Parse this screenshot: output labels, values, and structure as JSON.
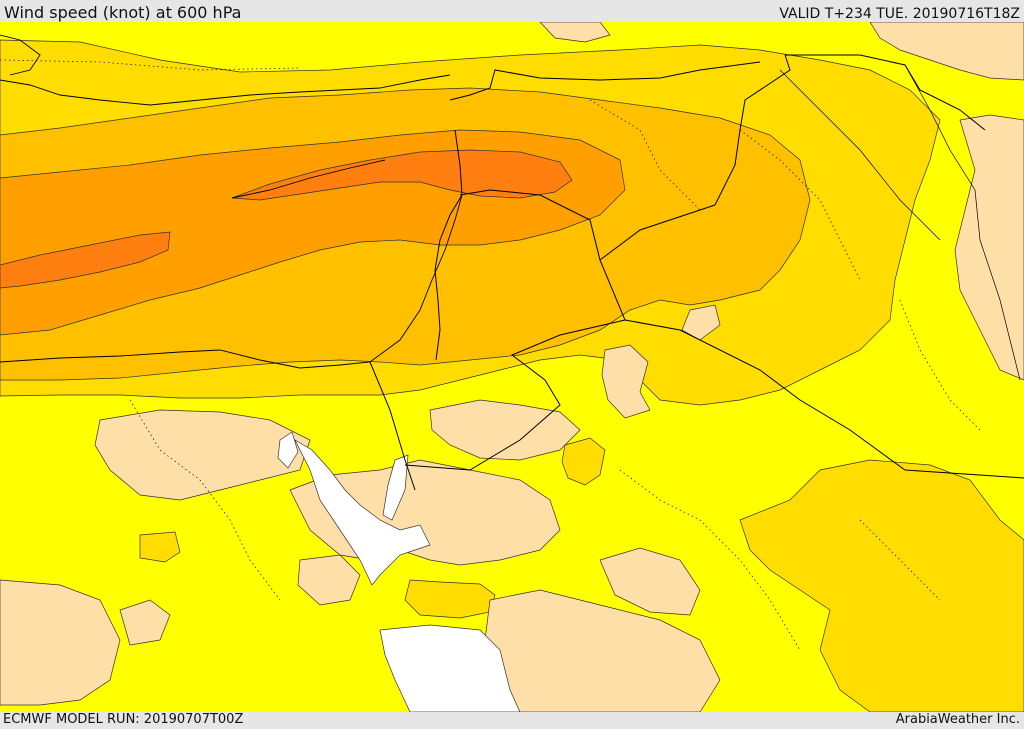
{
  "header": {
    "title": "Wind speed (knot) at 600 hPa",
    "valid": "VALID T+234 TUE. 20190716T18Z"
  },
  "footer": {
    "model_run": "ECMWF MODEL RUN: 20190707T00Z",
    "credit": "ArabiaWeather Inc."
  },
  "map": {
    "colors": {
      "calm_white": "#ffffff",
      "low_tan": "#ffdfa8",
      "base_yellow": "#ffff00",
      "gold": "#ffdd00",
      "amber": "#ffc000",
      "orange": "#ffa000",
      "deep_orange": "#ff7f10",
      "contour_line": "#333333",
      "border_line": "#000000"
    }
  }
}
